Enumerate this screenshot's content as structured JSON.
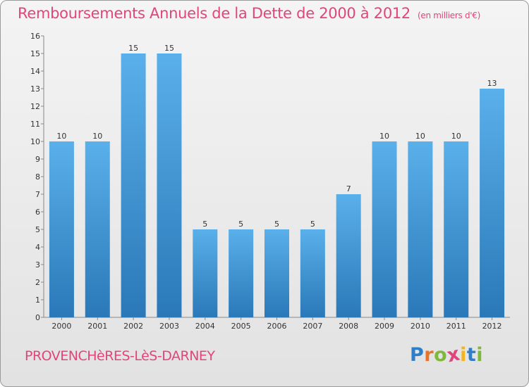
{
  "header": {
    "title": "Remboursements Annuels de la Dette de 2000 à 2012",
    "subtitle": "(en milliers d'€)"
  },
  "footer": {
    "commune": "PROVENCHèRES-LèS-DARNEY",
    "logo_letters": [
      "P",
      "r",
      "o",
      "x",
      "i",
      "t",
      "i"
    ],
    "logo_colors": [
      "#2f7fc8",
      "#e8742a",
      "#7fb93b",
      "#e0457b",
      "#f2b51e",
      "#2f7fc8",
      "#7fb93b"
    ]
  },
  "chart_data": {
    "type": "bar",
    "categories": [
      "2000",
      "2001",
      "2002",
      "2003",
      "2004",
      "2005",
      "2006",
      "2007",
      "2008",
      "2009",
      "2010",
      "2011",
      "2012"
    ],
    "values": [
      10,
      10,
      15,
      15,
      5,
      5,
      5,
      5,
      7,
      10,
      10,
      10,
      13
    ],
    "yticks": [
      "0",
      "1",
      "2",
      "3",
      "4",
      "5",
      "6",
      "7",
      "8",
      "9",
      "10",
      "11",
      "12",
      "13",
      "14",
      "15",
      "16"
    ],
    "ylim": [
      0,
      16
    ],
    "grid": false,
    "colors": {
      "bar_top": "#5ab0ea",
      "bar_bottom": "#2a78b8"
    }
  }
}
